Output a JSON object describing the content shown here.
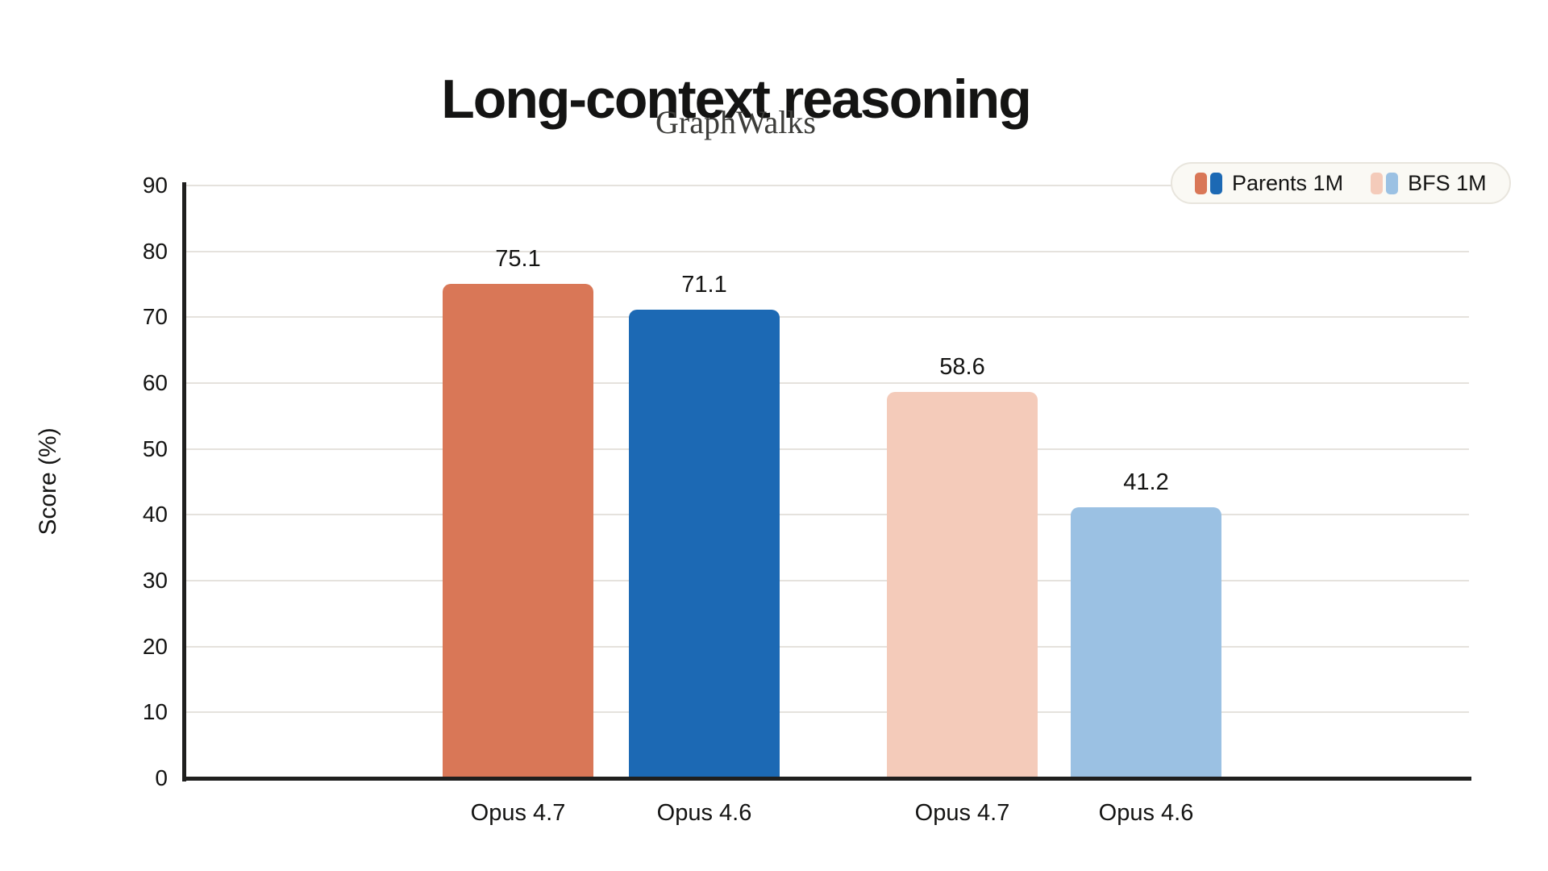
{
  "header": {
    "title": "Long-context reasoning",
    "subtitle": "GraphWalks"
  },
  "colors": {
    "orange": "#D97757",
    "dark_blue": "#1C69B4",
    "light_pink": "#F4CBBA",
    "light_blue": "#9BC1E3",
    "axis": "#1f1f1e",
    "grid": "#e5e2dd",
    "legend_bg": "#faf9f4"
  },
  "legend": {
    "entries": [
      {
        "label": "Parents 1M",
        "swatches": [
          "#D97757",
          "#1C69B4"
        ]
      },
      {
        "label": "BFS 1M",
        "swatches": [
          "#F4CBBA",
          "#9BC1E3"
        ]
      }
    ]
  },
  "chart_data": {
    "type": "bar",
    "title": "Long-context reasoning",
    "subtitle": "GraphWalks",
    "categories": [
      "Opus 4.7",
      "Opus 4.6",
      "Opus 4.7",
      "Opus 4.6"
    ],
    "values": [
      75.1,
      71.1,
      58.6,
      41.2
    ],
    "value_labels": [
      "75.1",
      "71.1",
      "58.6",
      "41.2"
    ],
    "bar_colors": [
      "#D97757",
      "#1C69B4",
      "#F4CBBA",
      "#9BC1E3"
    ],
    "series_grouping": [
      {
        "name": "Parents 1M",
        "bars": [
          "Opus 4.7",
          "Opus 4.6"
        ],
        "values": [
          75.1,
          71.1
        ]
      },
      {
        "name": "BFS 1M",
        "bars": [
          "Opus 4.7",
          "Opus 4.6"
        ],
        "values": [
          58.6,
          41.2
        ]
      }
    ],
    "xlabel": "",
    "ylabel": "Score (%)",
    "ylim": [
      0,
      90
    ],
    "yticks": [
      0,
      10,
      20,
      30,
      40,
      50,
      60,
      70,
      80,
      90
    ],
    "grid": true,
    "legend_position": "top-right"
  }
}
